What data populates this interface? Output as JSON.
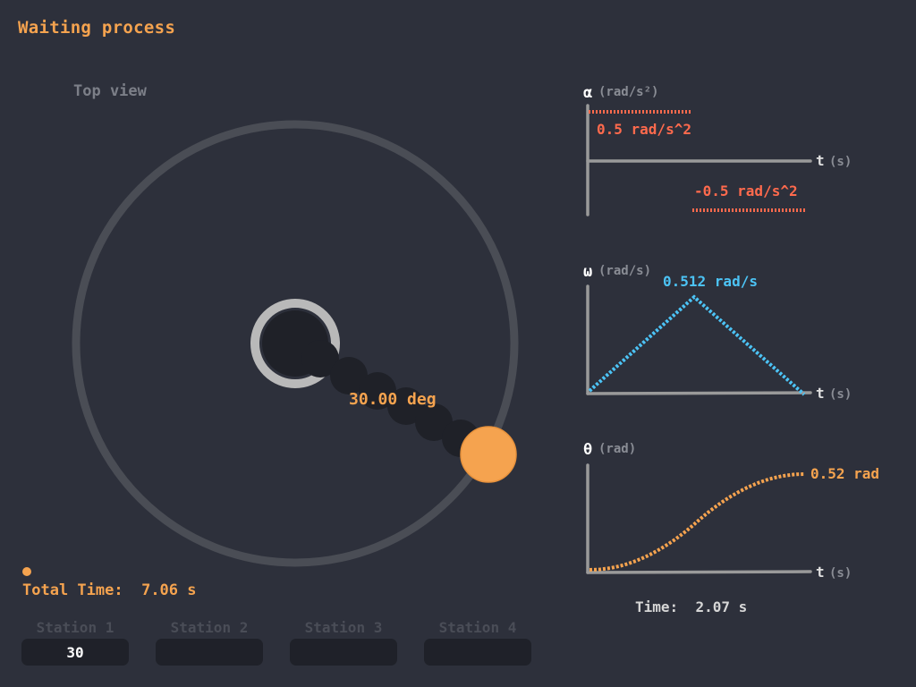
{
  "title": "Waiting process",
  "top_view": {
    "label": "Top view",
    "angle_label": "30.00 deg"
  },
  "total_time": {
    "label": "Total Time:",
    "value": "7.06 s"
  },
  "stations": [
    {
      "label": "Station 1",
      "value": "30"
    },
    {
      "label": "Station 2",
      "value": ""
    },
    {
      "label": "Station 3",
      "value": ""
    },
    {
      "label": "Station 4",
      "value": ""
    }
  ],
  "graphs": {
    "alpha": {
      "symbol": "α",
      "unit": "(rad/s²)",
      "t_symbol": "t",
      "t_unit": "(s)",
      "pos_label": "0.5 rad/s^2",
      "neg_label": "-0.5 rad/s^2",
      "color": "#ff6a4d"
    },
    "omega": {
      "symbol": "ω",
      "unit": "(rad/s)",
      "t_symbol": "t",
      "t_unit": "(s)",
      "peak_label": "0.512 rad/s",
      "color": "#4cc3f5"
    },
    "theta": {
      "symbol": "θ",
      "unit": "(rad)",
      "t_symbol": "t",
      "t_unit": "(s)",
      "end_label": "0.52 rad",
      "color": "#f5a34f"
    }
  },
  "time": {
    "label": "Time:",
    "value": "2.07 s"
  },
  "colors": {
    "accent": "#f5a34f",
    "background": "#2d303b",
    "track": "#4a4d55",
    "arm": "#1f2128"
  }
}
